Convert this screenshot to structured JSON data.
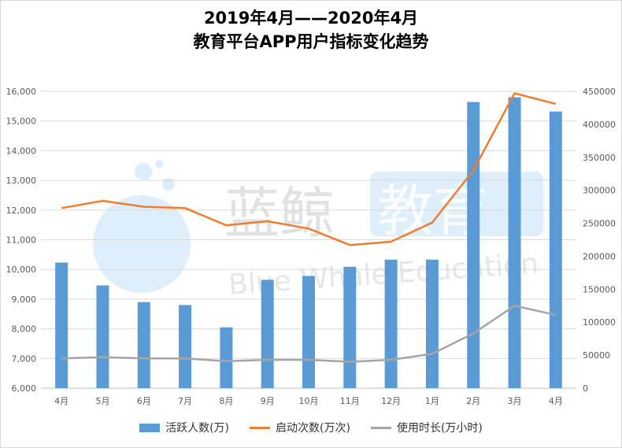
{
  "title_line1": "2019年4月——2020年4月",
  "title_line2": "教育平台APP用户指标变化趋势",
  "watermark": {
    "cn_text_1": "蓝鲸",
    "cn_text_2": "教育",
    "en_text": "Blue Whale Education"
  },
  "colors": {
    "bar": "#5b9bd5",
    "line_launch": "#ed7d31",
    "line_usage": "#a5a5a5",
    "grid": "#d9d9d9",
    "axis_text": "#595959"
  },
  "chart_data": {
    "type": "bar",
    "title": "2019年4月——2020年4月 教育平台APP用户指标变化趋势",
    "categories": [
      "4月",
      "5月",
      "6月",
      "7月",
      "8月",
      "9月",
      "10月",
      "11月",
      "12月",
      "1月",
      "2月",
      "3月",
      "4月"
    ],
    "left_axis": {
      "ylim": [
        6000,
        16000
      ],
      "ticks": [
        "6,000",
        "7,000",
        "8,000",
        "9,000",
        "10,000",
        "11,000",
        "12,000",
        "13,000",
        "14,000",
        "15,000",
        "16,000"
      ]
    },
    "right_axis": {
      "ylim": [
        0,
        450000
      ],
      "ticks": [
        "0",
        "50000",
        "100000",
        "150000",
        "200000",
        "250000",
        "300000",
        "350000",
        "400000",
        "450000"
      ]
    },
    "series": [
      {
        "name": "活跃人数(万)",
        "kind": "bar",
        "axis": "left",
        "values": [
          10230,
          9460,
          8900,
          8800,
          8050,
          9650,
          9780,
          10090,
          10330,
          10330,
          15640,
          15800,
          15320
        ]
      },
      {
        "name": "启动次数(万次)",
        "kind": "line",
        "axis": "right",
        "values": [
          273000,
          284000,
          275000,
          273000,
          247000,
          253000,
          242000,
          217000,
          222000,
          251000,
          330000,
          447000,
          431000
        ]
      },
      {
        "name": "使用时长(万小时)",
        "kind": "line",
        "axis": "right",
        "values": [
          45000,
          47000,
          45000,
          45000,
          41000,
          43000,
          43000,
          40000,
          43000,
          52000,
          83000,
          125000,
          111000
        ]
      }
    ]
  }
}
